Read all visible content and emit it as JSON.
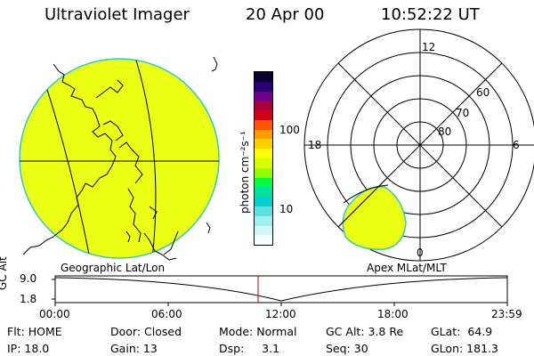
{
  "header": {
    "title": "Ultraviolet Imager",
    "date": "20 Apr 00",
    "time": "10:52:22 UT"
  },
  "geo_panel": {
    "label": "Geographic Lat/Lon"
  },
  "polar_panel": {
    "label": "Apex MLat/MLT",
    "lat_labels": [
      "60",
      "70",
      "80"
    ],
    "mlt_labels": {
      "top": "12",
      "left": "18",
      "right": "6",
      "bottom": "0"
    }
  },
  "colorbar": {
    "unit_label": "photon cm⁻²s⁻¹",
    "tick_100": "100",
    "tick_10": "10",
    "colors": [
      "#0a0030",
      "#2a0070",
      "#70008a",
      "#a8003a",
      "#d0001a",
      "#ff5500",
      "#ff9a00",
      "#ffd000",
      "#ffff00",
      "#d8ff00",
      "#90ff00",
      "#00ff40",
      "#00e0a0",
      "#00d0d0",
      "#60e0e0",
      "#a0f0f0",
      "#d0f8f8",
      "#f4ffff"
    ]
  },
  "altitude": {
    "axis_label": "GC Alt",
    "y_top": "9.0",
    "y_bottom": "1.8",
    "x_ticks": [
      "00:00",
      "06:00",
      "12:00",
      "18:00",
      "23:59"
    ]
  },
  "info": {
    "flt": "Flt: HOME",
    "ip": "IP: 18.0",
    "door": "Door: Closed",
    "gain": "Gain: 13",
    "mode": "Mode: Normal",
    "dsp": "Dsp:     3.1",
    "gcalt": "GC Alt: 3.8 Re",
    "seq": "Seq: 30",
    "glat": "GLat:  64.9",
    "glon": "GLon: 181.3"
  },
  "colors": {
    "emission_fill": "#eaff14",
    "emission_edge": "#30c8d0",
    "current_time_marker": "#d00000"
  }
}
